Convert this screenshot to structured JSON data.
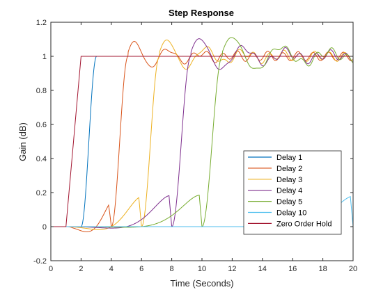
{
  "chart_data": {
    "type": "line",
    "title": "Step Response",
    "xlabel": "Time (Seconds)",
    "ylabel": "Gain (dB)",
    "xlim": [
      0,
      20
    ],
    "ylim": [
      -0.2,
      1.2
    ],
    "xticks": [
      0,
      2,
      4,
      6,
      8,
      10,
      12,
      14,
      16,
      18,
      20
    ],
    "yticks": [
      -0.2,
      0,
      0.2,
      0.4,
      0.6,
      0.8,
      1,
      1.2
    ],
    "xtick_labels": [
      "0",
      "2",
      "4",
      "6",
      "8",
      "10",
      "12",
      "14",
      "16",
      "18",
      "20"
    ],
    "ytick_labels": [
      "-0.2",
      "0",
      "0.2",
      "0.4",
      "0.6",
      "0.8",
      "1",
      "1.2"
    ],
    "grid": false,
    "legend_position": "bottom-right",
    "series": [
      {
        "name": "Delay 1",
        "color": "#0072BD",
        "delay": 1
      },
      {
        "name": "Delay 2",
        "color": "#D95319",
        "delay": 2
      },
      {
        "name": "Delay 3",
        "color": "#EDB120",
        "delay": 3
      },
      {
        "name": "Delay 4",
        "color": "#7E2F8E",
        "delay": 4
      },
      {
        "name": "Delay 5",
        "color": "#77AC30",
        "delay": 5
      },
      {
        "name": "Delay 10",
        "color": "#4DBEEE",
        "delay": 10
      },
      {
        "name": "Zero Order Hold",
        "color": "#A2142F",
        "delay": 0
      }
    ]
  }
}
